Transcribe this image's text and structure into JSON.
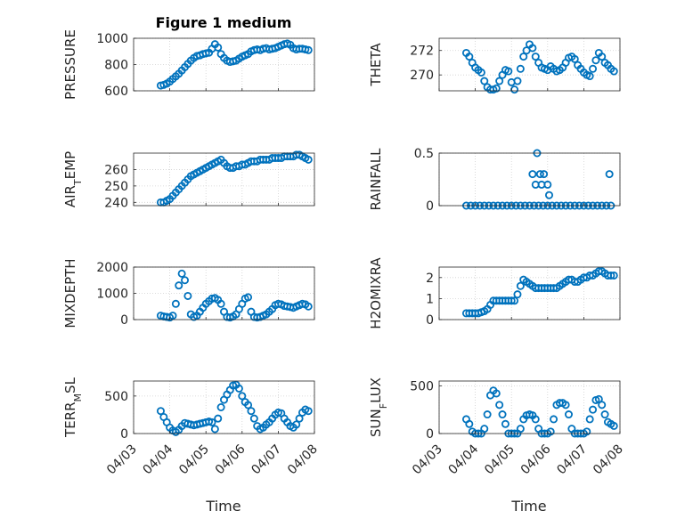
{
  "figure": {
    "title": "Figure 1 medium",
    "marker_color": "#0072BD"
  },
  "x_axis": {
    "label": "Time",
    "range": [
      "04/03",
      "04/08"
    ],
    "ticks": [
      "04/03",
      "04/04",
      "04/05",
      "04/06",
      "04/07",
      "04/08"
    ]
  },
  "chart_data": [
    {
      "type": "scatter",
      "ylabel": "PRESSURE",
      "ylim": [
        600,
        1000
      ],
      "yticks": [
        600,
        800,
        1000
      ],
      "x": [
        "04/03 18:00",
        "04/03 20:00",
        "04/03 22:00",
        "04/04 00:00",
        "04/04 02:00",
        "04/04 04:00",
        "04/04 06:00",
        "04/04 08:00",
        "04/04 10:00",
        "04/04 12:00",
        "04/04 14:00",
        "04/04 16:00",
        "04/04 18:00",
        "04/04 20:00",
        "04/04 22:00",
        "04/05 00:00",
        "04/05 02:00",
        "04/05 04:00",
        "04/05 06:00",
        "04/05 08:00",
        "04/05 10:00",
        "04/05 12:00",
        "04/05 14:00",
        "04/05 16:00",
        "04/05 18:00",
        "04/05 20:00",
        "04/05 22:00",
        "04/06 00:00",
        "04/06 02:00",
        "04/06 04:00",
        "04/06 06:00",
        "04/06 08:00",
        "04/06 10:00",
        "04/06 12:00",
        "04/06 14:00",
        "04/06 16:00",
        "04/06 18:00",
        "04/06 20:00",
        "04/06 22:00",
        "04/07 00:00",
        "04/07 02:00",
        "04/07 04:00",
        "04/07 06:00",
        "04/07 08:00",
        "04/07 10:00",
        "04/07 12:00",
        "04/07 14:00",
        "04/07 16:00",
        "04/07 18:00",
        "04/07 20:00"
      ],
      "y": [
        640,
        645,
        655,
        670,
        690,
        710,
        730,
        755,
        780,
        805,
        830,
        850,
        865,
        870,
        880,
        885,
        890,
        920,
        955,
        930,
        880,
        850,
        830,
        820,
        825,
        830,
        845,
        860,
        870,
        880,
        900,
        910,
        915,
        910,
        920,
        925,
        915,
        920,
        925,
        935,
        945,
        955,
        960,
        950,
        925,
        915,
        920,
        920,
        915,
        910
      ]
    },
    {
      "type": "scatter",
      "ylabel": "THETA",
      "ylim": [
        268.7,
        273
      ],
      "yticks": [
        270,
        272
      ],
      "x": [
        "04/03 18:00",
        "04/03 20:00",
        "04/03 22:00",
        "04/04 00:00",
        "04/04 02:00",
        "04/04 04:00",
        "04/04 06:00",
        "04/04 08:00",
        "04/04 10:00",
        "04/04 12:00",
        "04/04 14:00",
        "04/04 16:00",
        "04/04 18:00",
        "04/04 20:00",
        "04/04 22:00",
        "04/05 00:00",
        "04/05 02:00",
        "04/05 04:00",
        "04/05 06:00",
        "04/05 08:00",
        "04/05 10:00",
        "04/05 12:00",
        "04/05 14:00",
        "04/05 16:00",
        "04/05 18:00",
        "04/05 20:00",
        "04/05 22:00",
        "04/06 00:00",
        "04/06 02:00",
        "04/06 04:00",
        "04/06 06:00",
        "04/06 08:00",
        "04/06 10:00",
        "04/06 12:00",
        "04/06 14:00",
        "04/06 16:00",
        "04/06 18:00",
        "04/06 20:00",
        "04/06 22:00",
        "04/07 00:00",
        "04/07 02:00",
        "04/07 04:00",
        "04/07 06:00",
        "04/07 08:00",
        "04/07 10:00",
        "04/07 12:00",
        "04/07 14:00",
        "04/07 16:00",
        "04/07 18:00",
        "04/07 20:00"
      ],
      "y": [
        271.8,
        271.5,
        271.0,
        270.6,
        270.4,
        270.2,
        269.5,
        269.0,
        268.8,
        268.8,
        268.9,
        269.5,
        270.0,
        270.4,
        270.3,
        269.4,
        268.8,
        269.5,
        270.5,
        271.5,
        272.0,
        272.5,
        272.2,
        271.5,
        271.0,
        270.6,
        270.5,
        270.4,
        270.7,
        270.5,
        270.3,
        270.4,
        270.6,
        271.0,
        271.4,
        271.5,
        271.3,
        270.8,
        270.5,
        270.2,
        270.0,
        269.9,
        270.5,
        271.2,
        271.8,
        271.5,
        271.0,
        270.8,
        270.5,
        270.3
      ]
    },
    {
      "type": "scatter",
      "ylabel": "AIR_TEMP",
      "ylim": [
        238,
        270
      ],
      "yticks": [
        240,
        250,
        260
      ],
      "x": [
        "04/03 18:00",
        "04/03 20:00",
        "04/03 22:00",
        "04/04 00:00",
        "04/04 02:00",
        "04/04 04:00",
        "04/04 06:00",
        "04/04 08:00",
        "04/04 10:00",
        "04/04 12:00",
        "04/04 14:00",
        "04/04 16:00",
        "04/04 18:00",
        "04/04 20:00",
        "04/04 22:00",
        "04/05 00:00",
        "04/05 02:00",
        "04/05 04:00",
        "04/05 06:00",
        "04/05 08:00",
        "04/05 10:00",
        "04/05 12:00",
        "04/05 14:00",
        "04/05 16:00",
        "04/05 18:00",
        "04/05 20:00",
        "04/05 22:00",
        "04/06 00:00",
        "04/06 02:00",
        "04/06 04:00",
        "04/06 06:00",
        "04/06 08:00",
        "04/06 10:00",
        "04/06 12:00",
        "04/06 14:00",
        "04/06 16:00",
        "04/06 18:00",
        "04/06 20:00",
        "04/06 22:00",
        "04/07 00:00",
        "04/07 02:00",
        "04/07 04:00",
        "04/07 06:00",
        "04/07 08:00",
        "04/07 10:00",
        "04/07 12:00",
        "04/07 14:00",
        "04/07 16:00",
        "04/07 18:00",
        "04/07 20:00"
      ],
      "y": [
        240,
        240,
        241,
        242,
        244,
        246,
        248,
        250,
        252,
        254,
        256,
        257,
        258,
        259,
        260,
        261,
        262,
        263,
        264,
        265,
        266,
        264,
        262,
        261,
        261,
        262,
        262,
        263,
        263,
        264,
        265,
        265,
        265,
        266,
        266,
        266,
        266,
        267,
        267,
        267,
        267,
        268,
        268,
        268,
        268,
        269,
        269,
        268,
        267,
        266
      ]
    },
    {
      "type": "scatter",
      "ylabel": "RAINFALL",
      "ylim": [
        0,
        0.5
      ],
      "yticks": [
        0,
        0.5
      ],
      "x": [
        "04/03 18:00",
        "04/03 21:00",
        "04/04 00:00",
        "04/04 03:00",
        "04/04 06:00",
        "04/04 09:00",
        "04/04 12:00",
        "04/04 15:00",
        "04/04 18:00",
        "04/04 21:00",
        "04/05 00:00",
        "04/05 03:00",
        "04/05 06:00",
        "04/05 09:00",
        "04/05 12:00",
        "04/05 15:00",
        "04/05 18:00",
        "04/05 21:00",
        "04/06 00:00",
        "04/06 03:00",
        "04/06 06:00",
        "04/06 09:00",
        "04/06 12:00",
        "04/06 15:00",
        "04/06 18:00",
        "04/06 21:00",
        "04/07 00:00",
        "04/07 03:00",
        "04/07 06:00",
        "04/07 09:00",
        "04/07 12:00",
        "04/07 15:00",
        "04/07 18:00",
        "04/05 14:00",
        "04/05 16:00",
        "04/05 17:00",
        "04/05 19:00",
        "04/05 20:00",
        "04/05 21:30",
        "04/06 00:00",
        "04/06 01:00",
        "04/07 17:00"
      ],
      "y": [
        0,
        0,
        0,
        0,
        0,
        0,
        0,
        0,
        0,
        0,
        0,
        0,
        0,
        0,
        0,
        0,
        0,
        0,
        0,
        0,
        0,
        0,
        0,
        0,
        0,
        0,
        0,
        0,
        0,
        0,
        0,
        0,
        0,
        0.3,
        0.2,
        0.5,
        0.3,
        0.2,
        0.3,
        0.2,
        0.1,
        0.3
      ]
    },
    {
      "type": "scatter",
      "ylabel": "MIXDEPTH",
      "ylim": [
        0,
        2000
      ],
      "yticks": [
        0,
        1000,
        2000
      ],
      "x": [
        "04/03 18:00",
        "04/03 20:00",
        "04/03 22:00",
        "04/04 00:00",
        "04/04 02:00",
        "04/04 04:00",
        "04/04 06:00",
        "04/04 08:00",
        "04/04 10:00",
        "04/04 12:00",
        "04/04 14:00",
        "04/04 16:00",
        "04/04 18:00",
        "04/04 20:00",
        "04/04 22:00",
        "04/05 00:00",
        "04/05 02:00",
        "04/05 04:00",
        "04/05 06:00",
        "04/05 08:00",
        "04/05 10:00",
        "04/05 12:00",
        "04/05 14:00",
        "04/05 16:00",
        "04/05 18:00",
        "04/05 20:00",
        "04/05 22:00",
        "04/06 00:00",
        "04/06 02:00",
        "04/06 04:00",
        "04/06 06:00",
        "04/06 08:00",
        "04/06 10:00",
        "04/06 12:00",
        "04/06 14:00",
        "04/06 16:00",
        "04/06 18:00",
        "04/06 20:00",
        "04/06 22:00",
        "04/07 00:00",
        "04/07 02:00",
        "04/07 04:00",
        "04/07 06:00",
        "04/07 08:00",
        "04/07 10:00",
        "04/07 12:00",
        "04/07 14:00",
        "04/07 16:00",
        "04/07 18:00",
        "04/07 20:00"
      ],
      "y": [
        150,
        120,
        100,
        80,
        150,
        600,
        1300,
        1750,
        1500,
        900,
        200,
        100,
        150,
        300,
        450,
        600,
        700,
        800,
        820,
        750,
        600,
        300,
        100,
        80,
        120,
        200,
        400,
        600,
        800,
        850,
        300,
        100,
        80,
        100,
        150,
        200,
        300,
        400,
        550,
        600,
        580,
        520,
        500,
        480,
        450,
        500,
        550,
        600,
        580,
        500
      ]
    },
    {
      "type": "scatter",
      "ylabel": "H2OMIXRA",
      "ylim": [
        0,
        2.5
      ],
      "yticks": [
        0,
        1,
        2
      ],
      "x": [
        "04/03 18:00",
        "04/03 20:00",
        "04/03 22:00",
        "04/04 00:00",
        "04/04 02:00",
        "04/04 04:00",
        "04/04 06:00",
        "04/04 08:00",
        "04/04 10:00",
        "04/04 12:00",
        "04/04 14:00",
        "04/04 16:00",
        "04/04 18:00",
        "04/04 20:00",
        "04/04 22:00",
        "04/05 00:00",
        "04/05 02:00",
        "04/05 04:00",
        "04/05 06:00",
        "04/05 08:00",
        "04/05 10:00",
        "04/05 12:00",
        "04/05 14:00",
        "04/05 16:00",
        "04/05 18:00",
        "04/05 20:00",
        "04/05 22:00",
        "04/06 00:00",
        "04/06 02:00",
        "04/06 04:00",
        "04/06 06:00",
        "04/06 08:00",
        "04/06 10:00",
        "04/06 12:00",
        "04/06 14:00",
        "04/06 16:00",
        "04/06 18:00",
        "04/06 20:00",
        "04/06 22:00",
        "04/07 00:00",
        "04/07 02:00",
        "04/07 04:00",
        "04/07 06:00",
        "04/07 08:00",
        "04/07 10:00",
        "04/07 12:00",
        "04/07 14:00",
        "04/07 16:00",
        "04/07 18:00",
        "04/07 20:00"
      ],
      "y": [
        0.3,
        0.3,
        0.3,
        0.3,
        0.3,
        0.35,
        0.4,
        0.5,
        0.7,
        0.9,
        0.9,
        0.9,
        0.9,
        0.9,
        0.9,
        0.9,
        0.9,
        1.2,
        1.6,
        1.9,
        1.8,
        1.7,
        1.6,
        1.5,
        1.5,
        1.5,
        1.5,
        1.5,
        1.5,
        1.5,
        1.5,
        1.6,
        1.7,
        1.8,
        1.9,
        1.9,
        1.8,
        1.8,
        1.9,
        2.0,
        2.0,
        2.1,
        2.1,
        2.2,
        2.3,
        2.3,
        2.2,
        2.1,
        2.1,
        2.1
      ]
    },
    {
      "type": "scatter",
      "ylabel": "TERR_MSL",
      "ylim": [
        0,
        700
      ],
      "yticks": [
        0,
        500
      ],
      "x": [
        "04/03 18:00",
        "04/03 20:00",
        "04/03 22:00",
        "04/04 00:00",
        "04/04 02:00",
        "04/04 04:00",
        "04/04 06:00",
        "04/04 08:00",
        "04/04 10:00",
        "04/04 12:00",
        "04/04 14:00",
        "04/04 16:00",
        "04/04 18:00",
        "04/04 20:00",
        "04/04 22:00",
        "04/05 00:00",
        "04/05 02:00",
        "04/05 04:00",
        "04/05 06:00",
        "04/05 08:00",
        "04/05 10:00",
        "04/05 12:00",
        "04/05 14:00",
        "04/05 16:00",
        "04/05 18:00",
        "04/05 20:00",
        "04/05 22:00",
        "04/06 00:00",
        "04/06 02:00",
        "04/06 04:00",
        "04/06 06:00",
        "04/06 08:00",
        "04/06 10:00",
        "04/06 12:00",
        "04/06 14:00",
        "04/06 16:00",
        "04/06 18:00",
        "04/06 20:00",
        "04/06 22:00",
        "04/07 00:00",
        "04/07 02:00",
        "04/07 04:00",
        "04/07 06:00",
        "04/07 08:00",
        "04/07 10:00",
        "04/07 12:00",
        "04/07 14:00",
        "04/07 16:00",
        "04/07 18:00",
        "04/07 20:00"
      ],
      "y": [
        300,
        220,
        150,
        80,
        40,
        20,
        50,
        100,
        140,
        130,
        120,
        110,
        120,
        130,
        140,
        150,
        160,
        150,
        60,
        200,
        350,
        450,
        520,
        580,
        640,
        650,
        600,
        500,
        420,
        380,
        300,
        200,
        100,
        60,
        80,
        120,
        150,
        200,
        250,
        280,
        270,
        200,
        150,
        100,
        80,
        120,
        200,
        280,
        320,
        300
      ]
    },
    {
      "type": "scatter",
      "ylabel": "SUN_FLUX",
      "ylim": [
        0,
        550
      ],
      "yticks": [
        0,
        500
      ],
      "x": [
        "04/03 18:00",
        "04/03 20:00",
        "04/03 22:00",
        "04/04 00:00",
        "04/04 02:00",
        "04/04 04:00",
        "04/04 06:00",
        "04/04 08:00",
        "04/04 10:00",
        "04/04 12:00",
        "04/04 14:00",
        "04/04 16:00",
        "04/04 18:00",
        "04/04 20:00",
        "04/04 22:00",
        "04/05 00:00",
        "04/05 02:00",
        "04/05 04:00",
        "04/05 06:00",
        "04/05 08:00",
        "04/05 10:00",
        "04/05 12:00",
        "04/05 14:00",
        "04/05 16:00",
        "04/05 18:00",
        "04/05 20:00",
        "04/05 22:00",
        "04/06 00:00",
        "04/06 02:00",
        "04/06 04:00",
        "04/06 06:00",
        "04/06 08:00",
        "04/06 10:00",
        "04/06 12:00",
        "04/06 14:00",
        "04/06 16:00",
        "04/06 18:00",
        "04/06 20:00",
        "04/06 22:00",
        "04/07 00:00",
        "04/07 02:00",
        "04/07 04:00",
        "04/07 06:00",
        "04/07 08:00",
        "04/07 10:00",
        "04/07 12:00",
        "04/07 14:00",
        "04/07 16:00",
        "04/07 18:00",
        "04/07 20:00"
      ],
      "y": [
        150,
        100,
        20,
        0,
        0,
        0,
        50,
        200,
        400,
        450,
        420,
        300,
        200,
        100,
        0,
        0,
        0,
        0,
        50,
        150,
        190,
        200,
        190,
        150,
        50,
        0,
        0,
        0,
        20,
        150,
        300,
        320,
        320,
        300,
        200,
        50,
        0,
        0,
        0,
        0,
        20,
        150,
        250,
        350,
        360,
        300,
        200,
        120,
        100,
        80
      ]
    }
  ]
}
